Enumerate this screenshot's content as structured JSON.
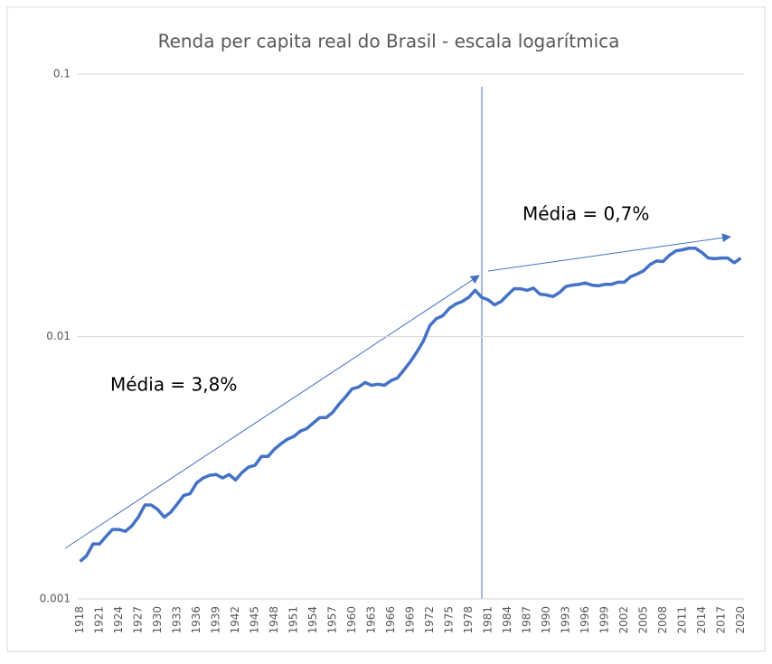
{
  "chart_data": {
    "type": "line",
    "title": "Renda per capita real do Brasil - escala logarítmica",
    "log_y": true,
    "grid": true,
    "ylim": [
      0.001,
      0.1
    ],
    "yticks": [
      0.001,
      0.01,
      0.1
    ],
    "categories": [
      "1918",
      null,
      null,
      "1921",
      null,
      null,
      "1924",
      null,
      null,
      "1927",
      null,
      null,
      "1930",
      null,
      null,
      "1933",
      null,
      null,
      "1936",
      null,
      null,
      "1939",
      null,
      null,
      "1942",
      null,
      null,
      "1945",
      null,
      null,
      "1948",
      null,
      null,
      "1951",
      null,
      null,
      "1954",
      null,
      null,
      "1957",
      null,
      null,
      "1960",
      null,
      null,
      "1963",
      null,
      null,
      "1966",
      null,
      null,
      "1969",
      null,
      null,
      "1972",
      null,
      null,
      "1975",
      null,
      null,
      "1978",
      null,
      null,
      "1981",
      null,
      null,
      "1984",
      null,
      null,
      "1987",
      null,
      null,
      "1990",
      null,
      null,
      "1993",
      null,
      null,
      "1996",
      null,
      null,
      "1999",
      null,
      null,
      "2002",
      null,
      null,
      "2005",
      null,
      null,
      "2008",
      null,
      null,
      "2011",
      null,
      null,
      "2014",
      null,
      null,
      "2017",
      null,
      null,
      "2020"
    ],
    "series": [
      {
        "color": "#4472c4",
        "values": [
          0.00139,
          0.00146,
          0.00162,
          0.00162,
          0.00173,
          0.00184,
          0.00184,
          0.00181,
          0.0019,
          0.00205,
          0.00228,
          0.00228,
          0.00219,
          0.00205,
          0.00214,
          0.0023,
          0.00248,
          0.00252,
          0.00277,
          0.00289,
          0.00296,
          0.00298,
          0.00289,
          0.00298,
          0.00284,
          0.00303,
          0.00318,
          0.00323,
          0.00349,
          0.00349,
          0.00372,
          0.0039,
          0.00406,
          0.00416,
          0.00436,
          0.00446,
          0.00468,
          0.00491,
          0.00491,
          0.00514,
          0.00553,
          0.00589,
          0.00632,
          0.00642,
          0.00668,
          0.00652,
          0.00658,
          0.00652,
          0.00679,
          0.00695,
          0.00746,
          0.00802,
          0.00874,
          0.00961,
          0.011,
          0.0117,
          0.012,
          0.0128,
          0.0133,
          0.0136,
          0.0141,
          0.015,
          0.0141,
          0.0138,
          0.0132,
          0.0136,
          0.0144,
          0.0152,
          0.0152,
          0.015,
          0.0153,
          0.0145,
          0.0144,
          0.0142,
          0.0147,
          0.0155,
          0.0157,
          0.0158,
          0.016,
          0.0157,
          0.0156,
          0.0158,
          0.0158,
          0.0161,
          0.0161,
          0.0169,
          0.0173,
          0.0178,
          0.0188,
          0.0194,
          0.0193,
          0.0204,
          0.0212,
          0.0214,
          0.0217,
          0.0217,
          0.0209,
          0.0199,
          0.0198,
          0.0199,
          0.0199,
          0.0191,
          0.0199
        ]
      }
    ],
    "annotations": [
      "Média = 3,8%",
      "Média = 0,7%"
    ]
  }
}
